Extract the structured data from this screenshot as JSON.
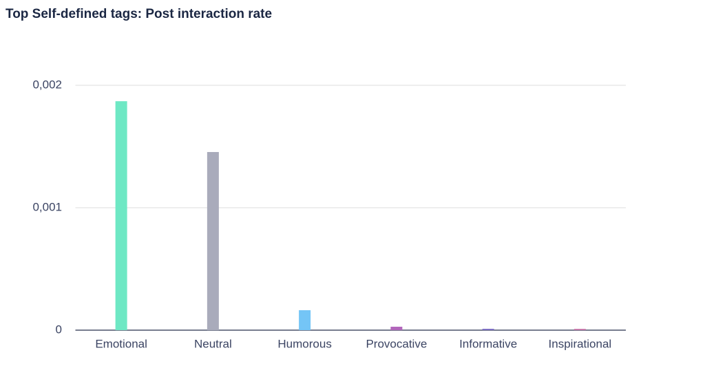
{
  "chart_data": {
    "type": "bar",
    "title": "Top Self-defined tags: Post interaction rate",
    "categories": [
      "Emotional",
      "Neutral",
      "Humorous",
      "Provocative",
      "Informative",
      "Inspirational"
    ],
    "values": [
      0.00187,
      0.001455,
      0.000163,
      2.8e-05,
      1.1e-05,
      1e-05
    ],
    "colors": [
      "#6ee8c4",
      "#a9abbb",
      "#74c5f6",
      "#b266bb",
      "#7d6fc4",
      "#c46fa4"
    ],
    "ylim": [
      0,
      0.002
    ],
    "yticks": [
      0,
      {
        "value": 0.001,
        "label": "0,001"
      },
      {
        "value": 0.002,
        "label": "0,002"
      }
    ],
    "grid": true
  }
}
